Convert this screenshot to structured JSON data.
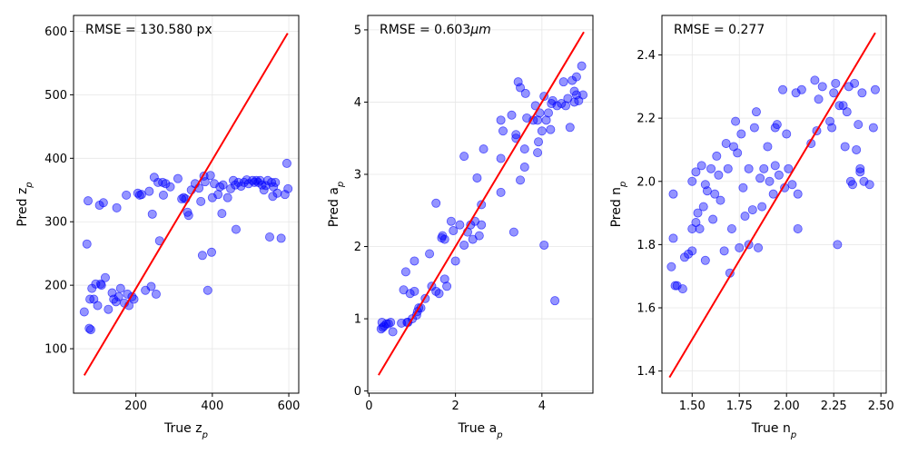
{
  "chart_data": [
    {
      "type": "scatter",
      "title": "",
      "annotation": "RMSE = 130.580 px",
      "xlabel_base": "True z",
      "xlabel_sub": "p",
      "ylabel_base": "Pred z",
      "ylabel_sub": "p",
      "xlim": [
        37,
        626
      ],
      "ylim": [
        30,
        625
      ],
      "xticks": [
        200,
        400,
        600
      ],
      "yticks": [
        100,
        200,
        300,
        400,
        500,
        600
      ],
      "xtick_labels": [
        "200",
        "400",
        "600"
      ],
      "ytick_labels": [
        "100",
        "200",
        "300",
        "400",
        "500",
        "600"
      ],
      "grid": true,
      "point_color": "#0000ff",
      "line_color": "#ff0000",
      "line": {
        "x": [
          65,
          597
        ],
        "y": [
          58,
          597
        ]
      },
      "points": [
        [
          65,
          158
        ],
        [
          72,
          265
        ],
        [
          75,
          333
        ],
        [
          78,
          132
        ],
        [
          80,
          178
        ],
        [
          82,
          130
        ],
        [
          85,
          195
        ],
        [
          90,
          178
        ],
        [
          95,
          202
        ],
        [
          100,
          168
        ],
        [
          105,
          326
        ],
        [
          108,
          202
        ],
        [
          110,
          200
        ],
        [
          115,
          330
        ],
        [
          120,
          212
        ],
        [
          128,
          162
        ],
        [
          138,
          188
        ],
        [
          142,
          178
        ],
        [
          148,
          174
        ],
        [
          150,
          322
        ],
        [
          155,
          182
        ],
        [
          160,
          195
        ],
        [
          170,
          172
        ],
        [
          175,
          342
        ],
        [
          178,
          186
        ],
        [
          182,
          168
        ],
        [
          190,
          182
        ],
        [
          195,
          178
        ],
        [
          205,
          345
        ],
        [
          210,
          342
        ],
        [
          215,
          343
        ],
        [
          225,
          192
        ],
        [
          235,
          348
        ],
        [
          240,
          198
        ],
        [
          243,
          312
        ],
        [
          248,
          370
        ],
        [
          253,
          186
        ],
        [
          258,
          362
        ],
        [
          262,
          270
        ],
        [
          270,
          362
        ],
        [
          272,
          342
        ],
        [
          278,
          360
        ],
        [
          290,
          355
        ],
        [
          310,
          368
        ],
        [
          320,
          336
        ],
        [
          325,
          338
        ],
        [
          330,
          336
        ],
        [
          335,
          315
        ],
        [
          338,
          310
        ],
        [
          345,
          350
        ],
        [
          355,
          360
        ],
        [
          365,
          353
        ],
        [
          370,
          332
        ],
        [
          374,
          247
        ],
        [
          378,
          372
        ],
        [
          381,
          363
        ],
        [
          388,
          192
        ],
        [
          395,
          373
        ],
        [
          398,
          252
        ],
        [
          400,
          338
        ],
        [
          405,
          360
        ],
        [
          415,
          343
        ],
        [
          420,
          355
        ],
        [
          425,
          313
        ],
        [
          428,
          358
        ],
        [
          440,
          338
        ],
        [
          448,
          352
        ],
        [
          455,
          365
        ],
        [
          460,
          358
        ],
        [
          462,
          288
        ],
        [
          468,
          362
        ],
        [
          475,
          356
        ],
        [
          483,
          362
        ],
        [
          490,
          366
        ],
        [
          495,
          360
        ],
        [
          505,
          365
        ],
        [
          510,
          362
        ],
        [
          515,
          365
        ],
        [
          520,
          362
        ],
        [
          525,
          365
        ],
        [
          530,
          358
        ],
        [
          535,
          350
        ],
        [
          540,
          357
        ],
        [
          545,
          365
        ],
        [
          550,
          276
        ],
        [
          555,
          362
        ],
        [
          558,
          340
        ],
        [
          560,
          355
        ],
        [
          565,
          362
        ],
        [
          570,
          345
        ],
        [
          580,
          274
        ],
        [
          590,
          343
        ],
        [
          595,
          392
        ],
        [
          598,
          352
        ]
      ]
    },
    {
      "type": "scatter",
      "title": "",
      "annotation_text": "RMSE = 0.603",
      "annotation_unit": "μm",
      "xlabel_base": "True a",
      "xlabel_sub": "p",
      "ylabel_base": "Pred a",
      "ylabel_sub": "p",
      "xlim": [
        -0.03,
        5.18
      ],
      "ylim": [
        -0.03,
        5.2
      ],
      "xticks": [
        0,
        2,
        4
      ],
      "yticks": [
        0,
        1,
        2,
        3,
        4,
        5
      ],
      "xtick_labels": [
        "0",
        "2",
        "4"
      ],
      "ytick_labels": [
        "0",
        "1",
        "2",
        "3",
        "4",
        "5"
      ],
      "grid": true,
      "point_color": "#0000ff",
      "line_color": "#ff0000",
      "line": {
        "x": [
          0.22,
          4.97
        ],
        "y": [
          0.22,
          4.97
        ]
      },
      "points": [
        [
          0.28,
          0.86
        ],
        [
          0.3,
          0.95
        ],
        [
          0.32,
          0.88
        ],
        [
          0.35,
          0.9
        ],
        [
          0.4,
          0.93
        ],
        [
          0.45,
          0.93
        ],
        [
          0.5,
          0.95
        ],
        [
          0.55,
          0.82
        ],
        [
          0.75,
          0.94
        ],
        [
          0.8,
          1.4
        ],
        [
          0.85,
          1.65
        ],
        [
          0.88,
          0.95
        ],
        [
          0.9,
          0.95
        ],
        [
          0.95,
          1.35
        ],
        [
          1.0,
          1.0
        ],
        [
          1.05,
          1.8
        ],
        [
          1.05,
          1.38
        ],
        [
          1.1,
          1.05
        ],
        [
          1.12,
          1.1
        ],
        [
          1.15,
          1.15
        ],
        [
          1.2,
          1.15
        ],
        [
          1.3,
          1.28
        ],
        [
          1.4,
          1.9
        ],
        [
          1.45,
          1.45
        ],
        [
          1.55,
          1.38
        ],
        [
          1.55,
          2.6
        ],
        [
          1.62,
          1.35
        ],
        [
          1.68,
          2.12
        ],
        [
          1.7,
          2.15
        ],
        [
          1.75,
          1.55
        ],
        [
          1.75,
          2.1
        ],
        [
          1.8,
          1.45
        ],
        [
          1.9,
          2.35
        ],
        [
          1.95,
          2.22
        ],
        [
          2.0,
          1.8
        ],
        [
          2.1,
          2.3
        ],
        [
          2.2,
          2.02
        ],
        [
          2.2,
          3.25
        ],
        [
          2.28,
          2.2
        ],
        [
          2.35,
          2.3
        ],
        [
          2.4,
          2.1
        ],
        [
          2.45,
          2.35
        ],
        [
          2.5,
          2.95
        ],
        [
          2.55,
          2.15
        ],
        [
          2.6,
          2.58
        ],
        [
          2.6,
          2.3
        ],
        [
          2.65,
          3.35
        ],
        [
          3.05,
          3.22
        ],
        [
          3.05,
          3.75
        ],
        [
          3.05,
          2.75
        ],
        [
          3.1,
          3.6
        ],
        [
          3.3,
          3.82
        ],
        [
          3.35,
          2.2
        ],
        [
          3.4,
          3.55
        ],
        [
          3.4,
          3.5
        ],
        [
          3.45,
          4.28
        ],
        [
          3.5,
          2.92
        ],
        [
          3.5,
          4.2
        ],
        [
          3.6,
          3.1
        ],
        [
          3.6,
          3.35
        ],
        [
          3.62,
          4.12
        ],
        [
          3.65,
          3.78
        ],
        [
          3.8,
          3.75
        ],
        [
          3.85,
          3.95
        ],
        [
          3.9,
          3.75
        ],
        [
          3.9,
          3.3
        ],
        [
          3.92,
          3.45
        ],
        [
          3.95,
          3.85
        ],
        [
          4.0,
          3.6
        ],
        [
          4.05,
          4.08
        ],
        [
          4.05,
          2.02
        ],
        [
          4.1,
          3.75
        ],
        [
          4.15,
          3.85
        ],
        [
          4.2,
          3.62
        ],
        [
          4.22,
          3.98
        ],
        [
          4.25,
          4.02
        ],
        [
          4.3,
          1.25
        ],
        [
          4.35,
          3.95
        ],
        [
          4.45,
          3.98
        ],
        [
          4.5,
          4.28
        ],
        [
          4.55,
          3.95
        ],
        [
          4.6,
          4.05
        ],
        [
          4.65,
          3.65
        ],
        [
          4.7,
          4.3
        ],
        [
          4.75,
          4.15
        ],
        [
          4.75,
          4.0
        ],
        [
          4.8,
          4.1
        ],
        [
          4.8,
          4.35
        ],
        [
          4.85,
          4.02
        ],
        [
          4.92,
          4.5
        ],
        [
          4.95,
          4.1
        ]
      ]
    },
    {
      "type": "scatter",
      "title": "",
      "annotation": "RMSE = 0.277",
      "xlabel_base": "True n",
      "xlabel_sub": "p",
      "ylabel_base": "Pred n",
      "ylabel_sub": "p",
      "xlim": [
        1.34,
        2.528
      ],
      "ylim": [
        1.33,
        2.525
      ],
      "xticks": [
        1.5,
        1.75,
        2.0,
        2.25,
        2.5
      ],
      "yticks": [
        1.4,
        1.6,
        1.8,
        2.0,
        2.2,
        2.4
      ],
      "xtick_labels": [
        "1.50",
        "1.75",
        "2.00",
        "2.25",
        "2.50"
      ],
      "ytick_labels": [
        "1.4",
        "1.6",
        "1.8",
        "2.0",
        "2.2",
        "2.4"
      ],
      "grid": true,
      "point_color": "#0000ff",
      "line_color": "#ff0000",
      "line": {
        "x": [
          1.38,
          2.47
        ],
        "y": [
          1.38,
          2.47
        ]
      },
      "points": [
        [
          1.39,
          1.73
        ],
        [
          1.4,
          1.82
        ],
        [
          1.4,
          1.96
        ],
        [
          1.41,
          1.67
        ],
        [
          1.42,
          1.67
        ],
        [
          1.45,
          1.66
        ],
        [
          1.46,
          1.76
        ],
        [
          1.48,
          1.77
        ],
        [
          1.5,
          1.78
        ],
        [
          1.5,
          2.0
        ],
        [
          1.5,
          1.85
        ],
        [
          1.52,
          1.87
        ],
        [
          1.52,
          2.03
        ],
        [
          1.53,
          1.9
        ],
        [
          1.54,
          1.85
        ],
        [
          1.55,
          2.05
        ],
        [
          1.56,
          1.92
        ],
        [
          1.57,
          1.99
        ],
        [
          1.57,
          1.75
        ],
        [
          1.58,
          1.97
        ],
        [
          1.6,
          2.04
        ],
        [
          1.61,
          1.88
        ],
        [
          1.62,
          1.96
        ],
        [
          1.63,
          2.08
        ],
        [
          1.64,
          2.02
        ],
        [
          1.65,
          1.94
        ],
        [
          1.67,
          1.78
        ],
        [
          1.68,
          2.12
        ],
        [
          1.69,
          2.04
        ],
        [
          1.7,
          1.71
        ],
        [
          1.71,
          1.85
        ],
        [
          1.72,
          2.11
        ],
        [
          1.73,
          2.19
        ],
        [
          1.74,
          2.09
        ],
        [
          1.75,
          1.79
        ],
        [
          1.76,
          2.15
        ],
        [
          1.77,
          1.98
        ],
        [
          1.78,
          1.89
        ],
        [
          1.8,
          1.8
        ],
        [
          1.8,
          2.04
        ],
        [
          1.82,
          1.91
        ],
        [
          1.83,
          2.17
        ],
        [
          1.84,
          2.22
        ],
        [
          1.85,
          1.79
        ],
        [
          1.86,
          2.01
        ],
        [
          1.87,
          1.92
        ],
        [
          1.88,
          2.04
        ],
        [
          1.9,
          2.11
        ],
        [
          1.91,
          2.0
        ],
        [
          1.93,
          1.96
        ],
        [
          1.94,
          2.05
        ],
        [
          1.94,
          2.17
        ],
        [
          1.95,
          2.18
        ],
        [
          1.96,
          2.02
        ],
        [
          1.98,
          2.29
        ],
        [
          1.99,
          1.98
        ],
        [
          2.0,
          2.15
        ],
        [
          2.01,
          2.04
        ],
        [
          2.03,
          1.99
        ],
        [
          2.05,
          2.28
        ],
        [
          2.06,
          1.96
        ],
        [
          2.06,
          1.85
        ],
        [
          2.08,
          2.29
        ],
        [
          2.13,
          2.12
        ],
        [
          2.15,
          2.32
        ],
        [
          2.16,
          2.16
        ],
        [
          2.17,
          2.26
        ],
        [
          2.19,
          2.3
        ],
        [
          2.23,
          2.19
        ],
        [
          2.24,
          2.17
        ],
        [
          2.25,
          2.28
        ],
        [
          2.26,
          2.31
        ],
        [
          2.27,
          1.8
        ],
        [
          2.28,
          2.24
        ],
        [
          2.3,
          2.24
        ],
        [
          2.31,
          2.11
        ],
        [
          2.32,
          2.22
        ],
        [
          2.33,
          2.3
        ],
        [
          2.34,
          2.0
        ],
        [
          2.35,
          1.99
        ],
        [
          2.36,
          2.31
        ],
        [
          2.37,
          2.1
        ],
        [
          2.38,
          2.18
        ],
        [
          2.39,
          2.04
        ],
        [
          2.39,
          2.03
        ],
        [
          2.4,
          2.28
        ],
        [
          2.41,
          2.0
        ],
        [
          2.44,
          1.99
        ],
        [
          2.46,
          2.17
        ],
        [
          2.47,
          2.29
        ]
      ]
    }
  ]
}
